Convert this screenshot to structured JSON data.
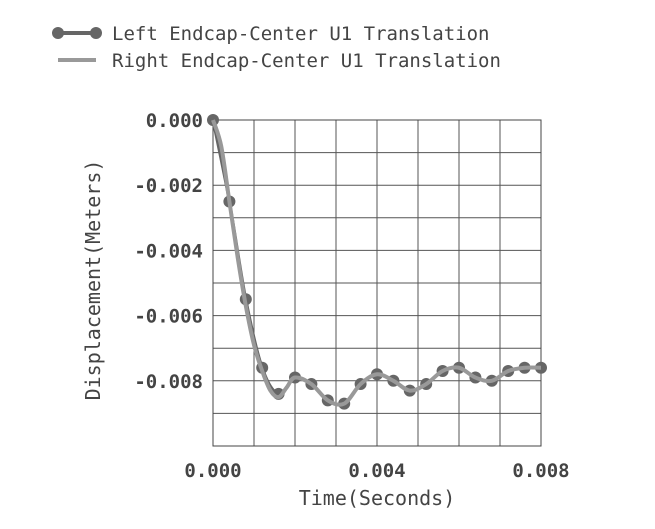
{
  "chart_data": {
    "type": "line",
    "xlabel": "Time(Seconds)",
    "ylabel": "Displacement(Meters)",
    "xlim": [
      0.0,
      0.008
    ],
    "ylim": [
      -0.01,
      0.0
    ],
    "x_ticks": [
      0.0,
      0.001,
      0.002,
      0.003,
      0.004,
      0.005,
      0.006,
      0.007,
      0.008
    ],
    "x_tick_labels": [
      "0.000",
      "",
      "",
      "",
      "0.004",
      "",
      "",
      "",
      "0.008"
    ],
    "y_ticks": [
      0.0,
      -0.001,
      -0.002,
      -0.003,
      -0.004,
      -0.005,
      -0.006,
      -0.007,
      -0.008,
      -0.009,
      -0.01
    ],
    "y_tick_labels": [
      "0.000",
      "",
      "-0.002",
      "",
      "-0.004",
      "",
      "-0.006",
      "",
      "-0.008",
      "",
      ""
    ],
    "grid": true,
    "legend_position": "top-left",
    "series": [
      {
        "name": "Left Endcap-Center U1 Translation",
        "color": "#666666",
        "marker": "circle",
        "x": [
          0.0,
          0.0004,
          0.0008,
          0.0012,
          0.0016,
          0.002,
          0.0024,
          0.0028,
          0.0032,
          0.0036,
          0.004,
          0.0044,
          0.0048,
          0.0052,
          0.0056,
          0.006,
          0.0064,
          0.0068,
          0.0072,
          0.0076,
          0.008
        ],
        "values": [
          0.0,
          -0.0025,
          -0.0055,
          -0.0076,
          -0.0084,
          -0.0079,
          -0.0081,
          -0.0086,
          -0.0087,
          -0.0081,
          -0.0078,
          -0.008,
          -0.0083,
          -0.0081,
          -0.0077,
          -0.0076,
          -0.0079,
          -0.008,
          -0.0077,
          -0.0076,
          -0.0076
        ]
      },
      {
        "name": "Right Endcap-Center U1 Translation",
        "color": "#999999",
        "marker": "none",
        "x": [
          0.0,
          0.0002,
          0.0004,
          0.0006,
          0.0008,
          0.001,
          0.0012,
          0.0014,
          0.0016,
          0.0018,
          0.002,
          0.0024,
          0.0028,
          0.0032,
          0.0036,
          0.004,
          0.0044,
          0.0048,
          0.0052,
          0.0056,
          0.006,
          0.0064,
          0.0068,
          0.0072,
          0.0076,
          0.008
        ],
        "values": [
          0.0,
          -0.0008,
          -0.0025,
          -0.0042,
          -0.0057,
          -0.0069,
          -0.0077,
          -0.0083,
          -0.0085,
          -0.0082,
          -0.0079,
          -0.0081,
          -0.0086,
          -0.0087,
          -0.0081,
          -0.0078,
          -0.008,
          -0.0083,
          -0.0081,
          -0.0077,
          -0.0076,
          -0.0079,
          -0.008,
          -0.0077,
          -0.0076,
          -0.0076
        ]
      }
    ]
  }
}
